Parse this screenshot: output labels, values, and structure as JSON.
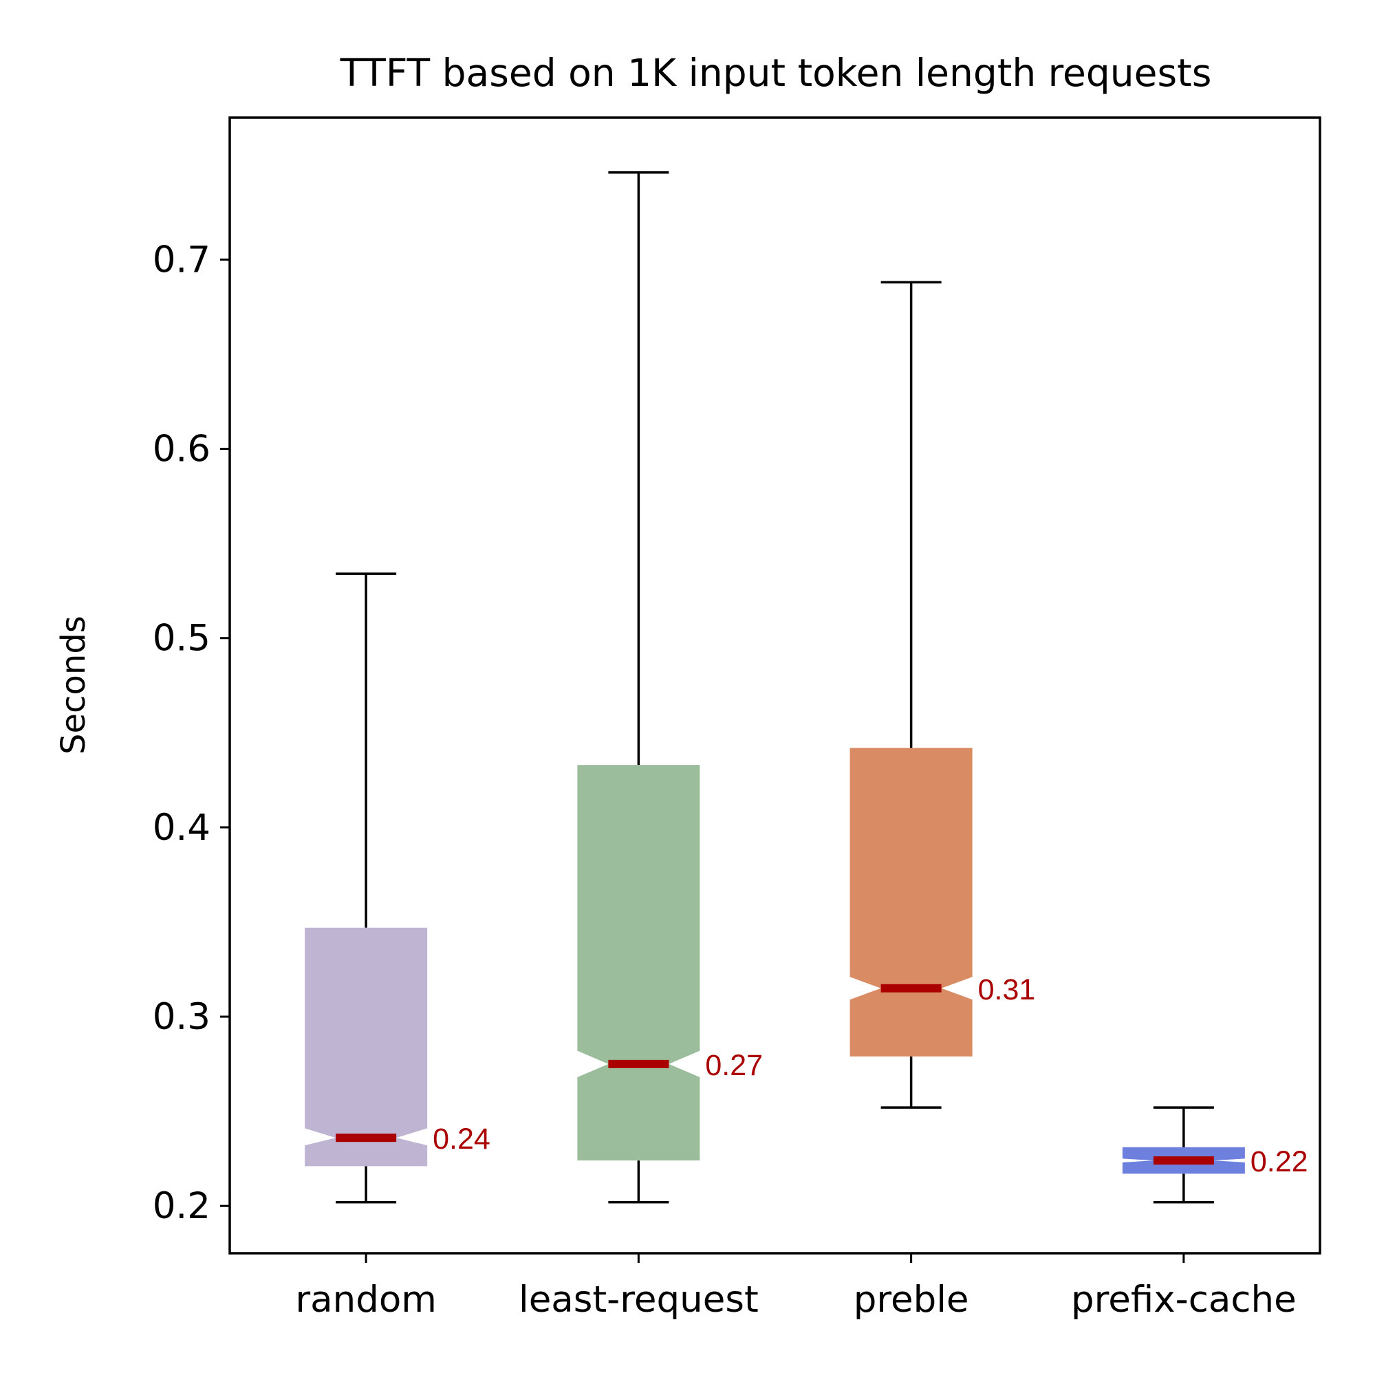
{
  "chart_data": {
    "type": "boxplot",
    "title": "TTFT based on 1K input token length requests",
    "xlabel": "",
    "ylabel": "Seconds",
    "ylim": [
      0.175,
      0.775
    ],
    "yticks": [
      0.2,
      0.3,
      0.4,
      0.5,
      0.6,
      0.7
    ],
    "ytick_labels": [
      "0.2",
      "0.3",
      "0.4",
      "0.5",
      "0.6",
      "0.7"
    ],
    "notched": true,
    "grid": false,
    "median_color": "#aa0000",
    "categories": [
      "random",
      "least-request",
      "preble",
      "prefix-cache"
    ],
    "boxes": [
      {
        "label": "random",
        "whisker_low": 0.202,
        "q1": 0.221,
        "median": 0.236,
        "q3": 0.347,
        "whisker_high": 0.534,
        "notch_low": 0.232,
        "notch_high": 0.241,
        "median_label": "0.24",
        "color": "#bfb5d2"
      },
      {
        "label": "least-request",
        "whisker_low": 0.202,
        "q1": 0.224,
        "median": 0.275,
        "q3": 0.433,
        "whisker_high": 0.746,
        "notch_low": 0.268,
        "notch_high": 0.282,
        "median_label": "0.27",
        "color": "#9bbd9c"
      },
      {
        "label": "preble",
        "whisker_low": 0.252,
        "q1": 0.279,
        "median": 0.315,
        "q3": 0.442,
        "whisker_high": 0.688,
        "notch_low": 0.309,
        "notch_high": 0.321,
        "median_label": "0.31",
        "color": "#d98c63"
      },
      {
        "label": "prefix-cache",
        "whisker_low": 0.202,
        "q1": 0.217,
        "median": 0.224,
        "q3": 0.231,
        "whisker_high": 0.252,
        "notch_low": 0.223,
        "notch_high": 0.225,
        "median_label": "0.22",
        "color": "#6d80dd"
      }
    ]
  }
}
